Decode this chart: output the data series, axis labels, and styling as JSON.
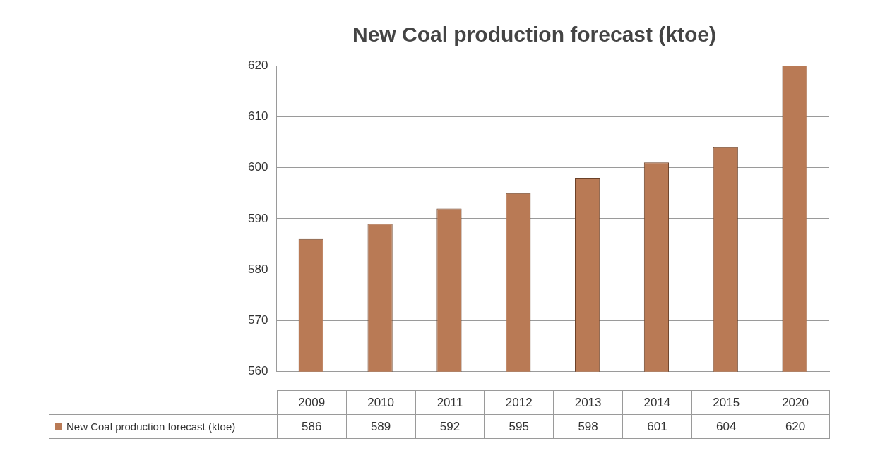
{
  "chart_data": {
    "type": "bar",
    "title": "New Coal production forecast (ktoe)",
    "categories": [
      "2009",
      "2010",
      "2011",
      "2012",
      "2013",
      "2014",
      "2015",
      "2020"
    ],
    "series": [
      {
        "name": "New Coal production forecast (ktoe)",
        "color": "#b97a55",
        "values": [
          586,
          589,
          592,
          595,
          598,
          601,
          604,
          620
        ]
      }
    ],
    "ylim": [
      560,
      620
    ],
    "yticks": [
      560,
      570,
      580,
      590,
      600,
      610,
      620
    ],
    "grid": "y",
    "legend": "bottom",
    "data_labels": true
  }
}
